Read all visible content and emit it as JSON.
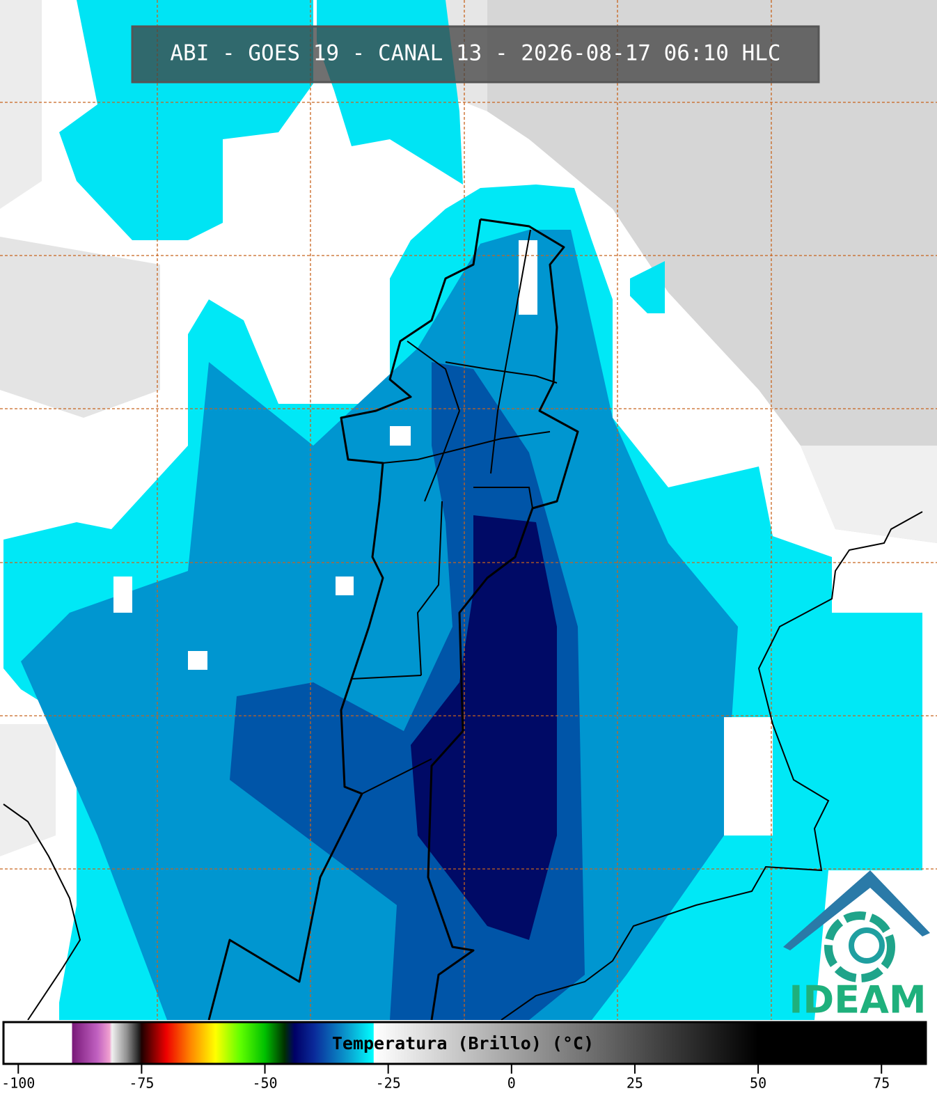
{
  "header": {
    "title": "ABI - GOES 19 - CANAL 13 - 2026-08-17 06:10 HLC"
  },
  "colorbar": {
    "label": "Temperatura (Brillo) (°C)",
    "lim": [
      -103,
      84
    ],
    "ticks": [
      -100,
      -75,
      -50,
      -25,
      0,
      25,
      50,
      75
    ],
    "colormap": [
      {
        "value": -103,
        "color": "#ffffff"
      },
      {
        "value": -89.2,
        "color": "#ffffff"
      },
      {
        "value": -89,
        "color": "#7a1a7a"
      },
      {
        "value": -84,
        "color": "#c060c0"
      },
      {
        "value": -81.5,
        "color": "#f0a0d0"
      },
      {
        "value": -81,
        "color": "#f0f0f0"
      },
      {
        "value": -78,
        "color": "#909090"
      },
      {
        "value": -75.5,
        "color": "#202020"
      },
      {
        "value": -75,
        "color": "#200000"
      },
      {
        "value": -70,
        "color": "#ee0000"
      },
      {
        "value": -65,
        "color": "#ff8800"
      },
      {
        "value": -60,
        "color": "#ffff00"
      },
      {
        "value": -55,
        "color": "#60ff00"
      },
      {
        "value": -50,
        "color": "#00c000"
      },
      {
        "value": -46,
        "color": "#003000"
      },
      {
        "value": -44,
        "color": "#000066"
      },
      {
        "value": -40,
        "color": "#0a2a9a"
      },
      {
        "value": -33,
        "color": "#0aa0d0"
      },
      {
        "value": -28,
        "color": "#00ffff"
      },
      {
        "value": -27.9,
        "color": "#ffffff"
      },
      {
        "value": 50,
        "color": "#000000"
      },
      {
        "value": 84,
        "color": "#000000"
      }
    ]
  },
  "logo": {
    "text": "IDEAM"
  }
}
